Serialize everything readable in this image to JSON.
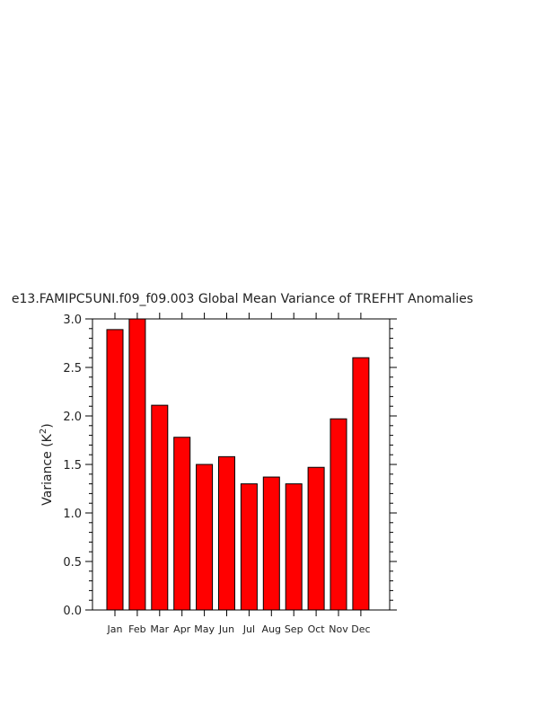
{
  "chart_data": {
    "type": "bar",
    "title": "e13.FAMIPC5UNI.f09_f09.003 Global Mean Variance of TREFHT Anomalies",
    "xlabel": "",
    "ylabel": "Variance  (K",
    "ylabel_sup": "2",
    "ylabel_suffix": ")",
    "categories": [
      "Jan",
      "Feb",
      "Mar",
      "Apr",
      "May",
      "Jun",
      "Jul",
      "Aug",
      "Sep",
      "Oct",
      "Nov",
      "Dec"
    ],
    "values": [
      2.89,
      3.0,
      2.11,
      1.78,
      1.5,
      1.58,
      1.3,
      1.37,
      1.3,
      1.47,
      1.97,
      2.6
    ],
    "ylim": [
      0,
      3.0
    ],
    "yticks": [
      "0.0",
      "0.5",
      "1.0",
      "1.5",
      "2.0",
      "2.5",
      "3.0"
    ],
    "ytick_values": [
      0,
      0.5,
      1.0,
      1.5,
      2.0,
      2.5,
      3.0
    ],
    "y_minor_step": 0.1,
    "bar_color": "#ff0000",
    "bar_edge_color": "#000000",
    "grid": false,
    "legend": "none"
  }
}
